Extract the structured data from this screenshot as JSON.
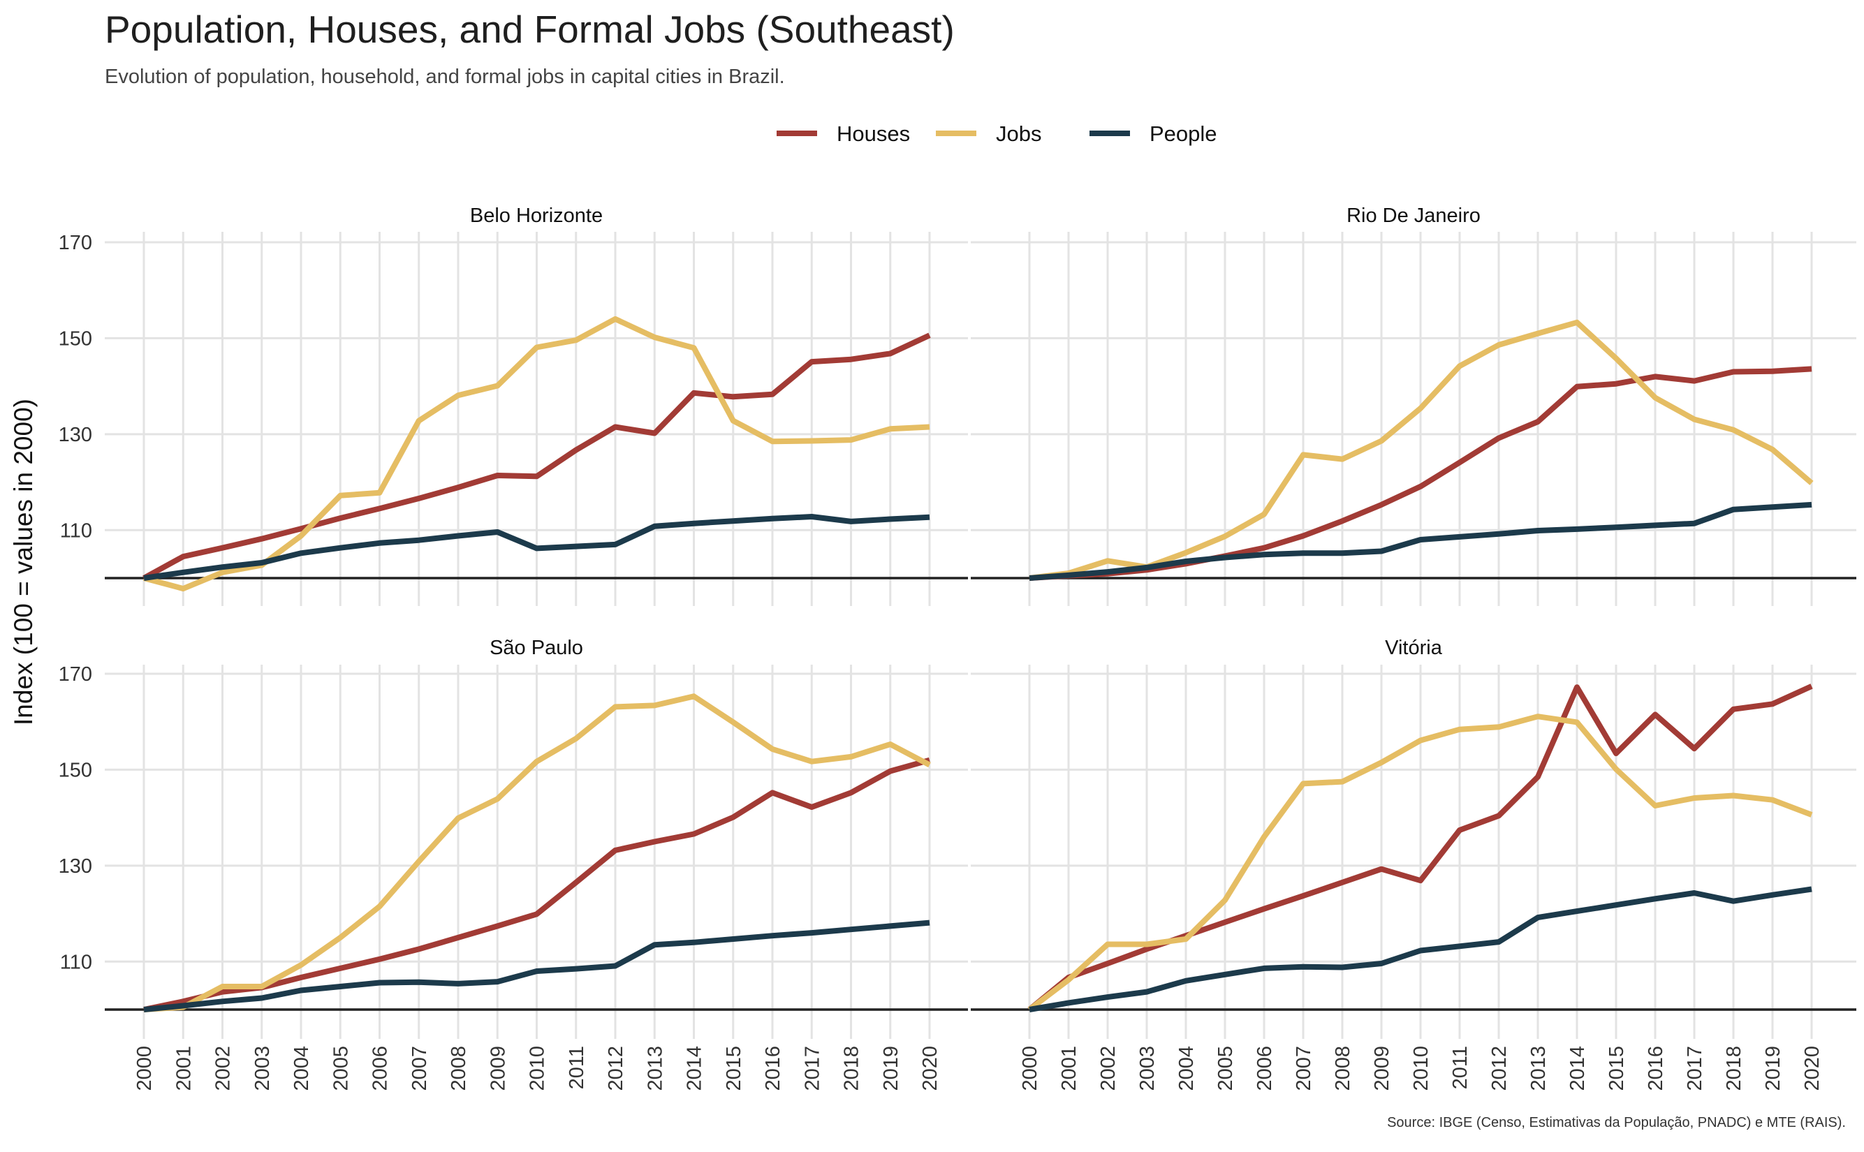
{
  "title": "Population, Houses, and Formal Jobs (Southeast)",
  "subtitle": "Evolution of population, household, and formal jobs in capital cities in Brazil.",
  "source": "Source: IBGE (Censo, Estimativas da População, PNADC) e MTE (RAIS).",
  "legend": [
    {
      "name": "Houses",
      "color": "#a23b35"
    },
    {
      "name": "Jobs",
      "color": "#e5bd63"
    },
    {
      "name": "People",
      "color": "#1c3a4b"
    }
  ],
  "chart_data": {
    "type": "line",
    "ylabel": "Index (100 = values in 2000)",
    "xlabel": "",
    "ylim": [
      97,
      171
    ],
    "xlim": [
      2000,
      2020
    ],
    "yticks": [
      110,
      130,
      150,
      170
    ],
    "baseline": 100,
    "grid": true,
    "legend_position": "top",
    "x": [
      "2000",
      "2001",
      "2002",
      "2003",
      "2004",
      "2005",
      "2006",
      "2007",
      "2008",
      "2009",
      "2010",
      "2011",
      "2012",
      "2013",
      "2014",
      "2015",
      "2016",
      "2017",
      "2018",
      "2019",
      "2020"
    ],
    "panels": [
      {
        "title": "Belo Horizonte",
        "series": [
          {
            "name": "Houses",
            "color": "#a23b35",
            "values": [
              100,
              104.5,
              106.3,
              108.2,
              110.3,
              112.5,
              114.5,
              116.6,
              118.9,
              121.4,
              121.2,
              126.7,
              131.5,
              130.2,
              138.6,
              137.8,
              138.3,
              145.1,
              145.6,
              146.8,
              150.6
            ]
          },
          {
            "name": "Jobs",
            "color": "#e5bd63",
            "values": [
              100,
              97.8,
              101.2,
              102.7,
              108.8,
              117.2,
              117.8,
              132.8,
              138.1,
              140.1,
              148.1,
              149.6,
              154.0,
              150.2,
              148.0,
              132.8,
              128.5,
              128.6,
              128.8,
              131.1,
              131.5
            ]
          },
          {
            "name": "People",
            "color": "#1c3a4b",
            "values": [
              100,
              101.2,
              102.3,
              103.2,
              105.2,
              106.3,
              107.3,
              107.9,
              108.8,
              109.6,
              106.2,
              106.6,
              107.0,
              110.8,
              111.4,
              111.9,
              112.4,
              112.8,
              111.8,
              112.3,
              112.7
            ]
          }
        ]
      },
      {
        "title": "Rio De Janeiro",
        "series": [
          {
            "name": "Houses",
            "color": "#a23b35",
            "values": [
              100,
              100.5,
              100.9,
              101.7,
              103.0,
              104.6,
              106.3,
              108.8,
              111.9,
              115.3,
              119.1,
              124.1,
              129.2,
              132.6,
              139.9,
              140.5,
              142.0,
              141.1,
              143.0,
              143.1,
              143.6
            ]
          },
          {
            "name": "Jobs",
            "color": "#e5bd63",
            "values": [
              100,
              101.0,
              103.6,
              102.3,
              105.3,
              108.7,
              113.3,
              125.7,
              124.8,
              128.6,
              135.4,
              144.2,
              148.6,
              151.0,
              153.3,
              145.8,
              137.6,
              133.1,
              130.9,
              126.8,
              119.8
            ]
          },
          {
            "name": "People",
            "color": "#1c3a4b",
            "values": [
              100,
              100.6,
              101.3,
              102.2,
              103.5,
              104.3,
              104.9,
              105.2,
              105.2,
              105.6,
              108.0,
              108.6,
              109.2,
              109.9,
              110.2,
              110.6,
              111.0,
              111.4,
              114.3,
              114.8,
              115.3
            ]
          }
        ]
      },
      {
        "title": "São Paulo",
        "series": [
          {
            "name": "Houses",
            "color": "#a23b35",
            "values": [
              100,
              101.7,
              103.7,
              104.6,
              106.7,
              108.6,
              110.5,
              112.6,
              115.0,
              117.4,
              119.9,
              126.5,
              133.2,
              135.0,
              136.6,
              140.1,
              145.2,
              142.2,
              145.2,
              149.7,
              152.0
            ]
          },
          {
            "name": "Jobs",
            "color": "#e5bd63",
            "values": [
              100,
              100.5,
              104.8,
              104.8,
              109.3,
              115.0,
              121.5,
              130.9,
              139.9,
              143.9,
              151.7,
              156.5,
              163.1,
              163.4,
              165.3,
              159.9,
              154.3,
              151.7,
              152.7,
              155.3,
              151.0
            ]
          },
          {
            "name": "People",
            "color": "#1c3a4b",
            "values": [
              100,
              100.8,
              101.7,
              102.4,
              104.0,
              104.8,
              105.6,
              105.7,
              105.4,
              105.8,
              108.0,
              108.5,
              109.1,
              113.5,
              114.0,
              114.7,
              115.4,
              116.0,
              116.7,
              117.4,
              118.1
            ]
          }
        ]
      },
      {
        "title": "Vitória",
        "series": [
          {
            "name": "Houses",
            "color": "#a23b35",
            "values": [
              100,
              106.7,
              109.6,
              112.6,
              115.4,
              118.2,
              121.0,
              123.7,
              126.5,
              129.3,
              126.9,
              137.4,
              140.4,
              148.5,
              167.2,
              153.4,
              161.5,
              154.4,
              162.6,
              163.7,
              167.4
            ]
          },
          {
            "name": "Jobs",
            "color": "#e5bd63",
            "values": [
              100,
              106.2,
              113.6,
              113.6,
              114.7,
              122.8,
              136.0,
              147.1,
              147.5,
              151.5,
              156.1,
              158.4,
              158.9,
              161.1,
              159.9,
              150.1,
              142.5,
              144.1,
              144.6,
              143.7,
              140.6
            ]
          },
          {
            "name": "People",
            "color": "#1c3a4b",
            "values": [
              100,
              101.4,
              102.6,
              103.7,
              106.0,
              107.3,
              108.6,
              108.9,
              108.8,
              109.6,
              112.3,
              113.2,
              114.1,
              119.2,
              120.5,
              121.8,
              123.1,
              124.3,
              122.6,
              123.9,
              125.1
            ]
          }
        ]
      }
    ]
  }
}
